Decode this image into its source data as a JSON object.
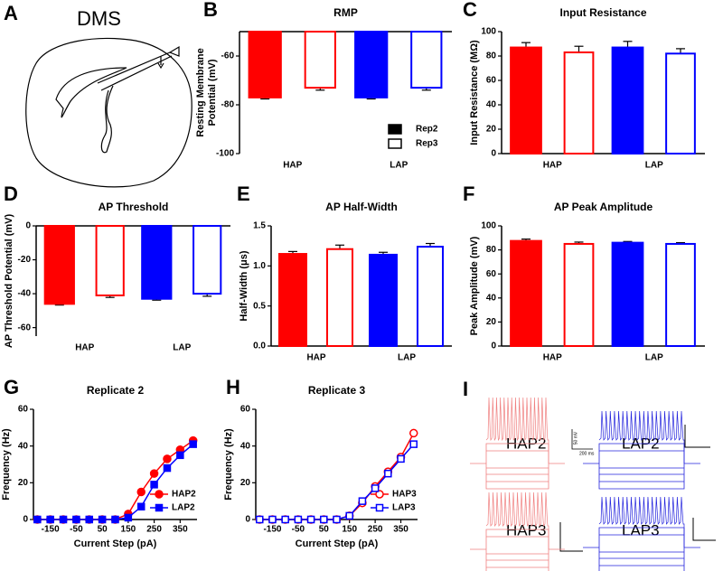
{
  "chart_data": [
    {
      "type": "bar",
      "panel": "B",
      "title": "RMP",
      "ylabel": [
        "Resting Membrane",
        "Potential (mV)"
      ],
      "categories": [
        "HAP",
        "LAP"
      ],
      "colors": [
        "#ff0000",
        "#0000ff"
      ],
      "series": [
        {
          "name": "Rep2",
          "color": "#000000",
          "filled": true,
          "values": [
            -77,
            -77
          ],
          "errors": [
            0.6,
            0.6
          ]
        },
        {
          "name": "Rep3",
          "color": "#000000",
          "filled": false,
          "values": [
            -73,
            -73
          ],
          "errors": [
            1,
            1
          ]
        }
      ],
      "ylim": [
        -100,
        -50
      ],
      "yticks": [
        -100,
        -80,
        -60
      ],
      "legend": "lower right"
    },
    {
      "type": "bar",
      "panel": "C",
      "title": "Input Resistance",
      "ylabel": [
        "Input Resistance (MΩ)"
      ],
      "categories": [
        "HAP",
        "LAP"
      ],
      "colors": [
        "#ff0000",
        "#0000ff"
      ],
      "series": [
        {
          "filled": true,
          "values": [
            87,
            87
          ],
          "errors": [
            4,
            5
          ]
        },
        {
          "filled": false,
          "values": [
            83,
            82
          ],
          "errors": [
            5,
            4
          ]
        }
      ],
      "ylim": [
        0,
        100
      ],
      "yticks": [
        0,
        20,
        40,
        60,
        80,
        100
      ]
    },
    {
      "type": "bar",
      "panel": "D",
      "title": "AP Threshold",
      "ylabel": [
        "AP Threshold Potential (mV)"
      ],
      "categories": [
        "HAP",
        "LAP"
      ],
      "colors": [
        "#ff0000",
        "#0000ff"
      ],
      "series": [
        {
          "filled": true,
          "values": [
            -46,
            -43
          ],
          "errors": [
            0.7,
            0.8
          ]
        },
        {
          "filled": false,
          "values": [
            -41,
            -40
          ],
          "errors": [
            1.2,
            1.5
          ]
        }
      ],
      "ylim": [
        -65,
        0
      ],
      "yticks": [
        -60,
        -40,
        -20,
        0
      ]
    },
    {
      "type": "bar",
      "panel": "E",
      "title": "AP Half-Width",
      "ylabel": [
        "Half-Width (μs)"
      ],
      "categories": [
        "HAP",
        "LAP"
      ],
      "colors": [
        "#ff0000",
        "#0000ff"
      ],
      "series": [
        {
          "filled": true,
          "values": [
            1.15,
            1.14
          ],
          "errors": [
            0.03,
            0.03
          ]
        },
        {
          "filled": false,
          "values": [
            1.21,
            1.24
          ],
          "errors": [
            0.05,
            0.04
          ]
        }
      ],
      "ylim": [
        0,
        1.5
      ],
      "yticks": [
        {
          "value": 0,
          "label": "0.0"
        },
        0.5,
        {
          "value": 1,
          "label": "1.0"
        },
        1.5
      ]
    },
    {
      "type": "bar",
      "panel": "F",
      "title": "AP Peak Amplitude",
      "ylabel": [
        "Peak Amplitude (mV)"
      ],
      "categories": [
        "HAP",
        "LAP"
      ],
      "colors": [
        "#ff0000",
        "#0000ff"
      ],
      "series": [
        {
          "filled": true,
          "values": [
            87.5,
            86
          ],
          "errors": [
            1.5,
            1
          ]
        },
        {
          "filled": false,
          "values": [
            85,
            85
          ],
          "errors": [
            1.5,
            1
          ]
        }
      ],
      "ylim": [
        0,
        100
      ],
      "yticks": [
        0,
        20,
        40,
        60,
        80,
        100
      ]
    },
    {
      "type": "line",
      "panel": "G",
      "title": "Replicate 2",
      "xlabel": "Current Step (pA)",
      "ylabel": [
        "Frequency (Hz)"
      ],
      "x": [
        -200,
        -150,
        -100,
        -50,
        0,
        50,
        100,
        150,
        200,
        250,
        300,
        350,
        400
      ],
      "series": [
        {
          "name": "HAP2",
          "color": "#ff0000",
          "marker": "circle",
          "filled": true,
          "values": [
            0,
            0,
            0,
            0,
            0,
            0,
            0,
            3,
            15,
            25,
            33,
            38,
            43
          ]
        },
        {
          "name": "LAP2",
          "color": "#0000ff",
          "marker": "square",
          "filled": true,
          "values": [
            0,
            0,
            0,
            0,
            0,
            0,
            0,
            1,
            7,
            19,
            28,
            35,
            41
          ]
        }
      ],
      "xlim": [
        -215,
        415
      ],
      "xticks": [
        -150,
        -50,
        50,
        150,
        250,
        350
      ],
      "ylim": [
        0,
        60
      ],
      "yticks": [
        0,
        20,
        40,
        60
      ],
      "legend": "lower right"
    },
    {
      "type": "line",
      "panel": "H",
      "title": "Replicate 3",
      "xlabel": "Current Step (pA)",
      "ylabel": [
        "Frequency (Hz)"
      ],
      "x": [
        -200,
        -150,
        -100,
        -50,
        0,
        50,
        100,
        150,
        200,
        250,
        300,
        350,
        400
      ],
      "series": [
        {
          "name": "HAP3",
          "color": "#ff0000",
          "marker": "circle",
          "filled": false,
          "values": [
            0,
            0,
            0,
            0,
            0,
            0,
            0,
            2,
            9,
            18,
            26,
            34,
            47
          ]
        },
        {
          "name": "LAP3",
          "color": "#0000ff",
          "marker": "square",
          "filled": false,
          "values": [
            0,
            0,
            0,
            0,
            0,
            0,
            0,
            2,
            10,
            17,
            25,
            33,
            41
          ]
        }
      ],
      "xlim": [
        -215,
        415
      ],
      "xticks": [
        -150,
        -50,
        50,
        150,
        250,
        350
      ],
      "ylim": [
        0,
        60
      ],
      "yticks": [
        0,
        20,
        40,
        60
      ],
      "legend": "lower right"
    }
  ],
  "diagram": {
    "panel": "A",
    "label": "DMS"
  },
  "traces": {
    "panel": "I",
    "titles": [
      "HAP2",
      "LAP2",
      "HAP3",
      "LAP3"
    ],
    "scale_bar": [
      "50 mV",
      "200 ms"
    ]
  }
}
